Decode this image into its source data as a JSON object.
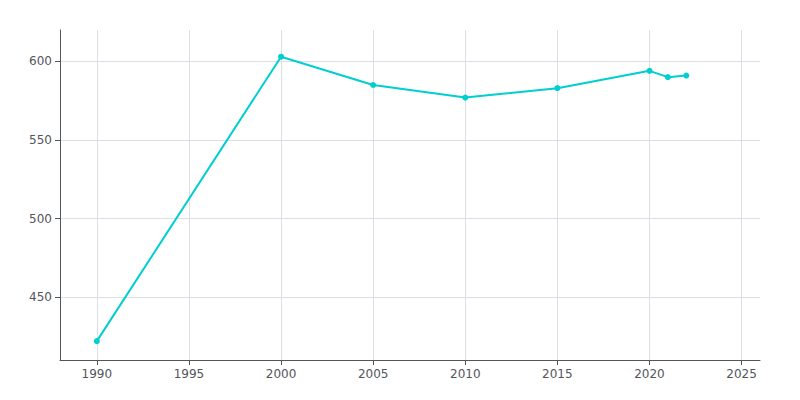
{
  "chart_data": {
    "type": "line",
    "x": [
      1990,
      2000,
      2005,
      2010,
      2015,
      2020,
      2021,
      2022
    ],
    "values": [
      422,
      603,
      585,
      577,
      583,
      594,
      590,
      591
    ],
    "color": "#00CED1",
    "marker": "circle",
    "xlim": [
      1988,
      2026
    ],
    "xticks": [
      1990,
      1995,
      2000,
      2005,
      2010,
      2015,
      2020,
      2025
    ],
    "ylim": [
      410,
      620
    ],
    "yticks": [
      450,
      500,
      550,
      600
    ],
    "grid": true
  }
}
